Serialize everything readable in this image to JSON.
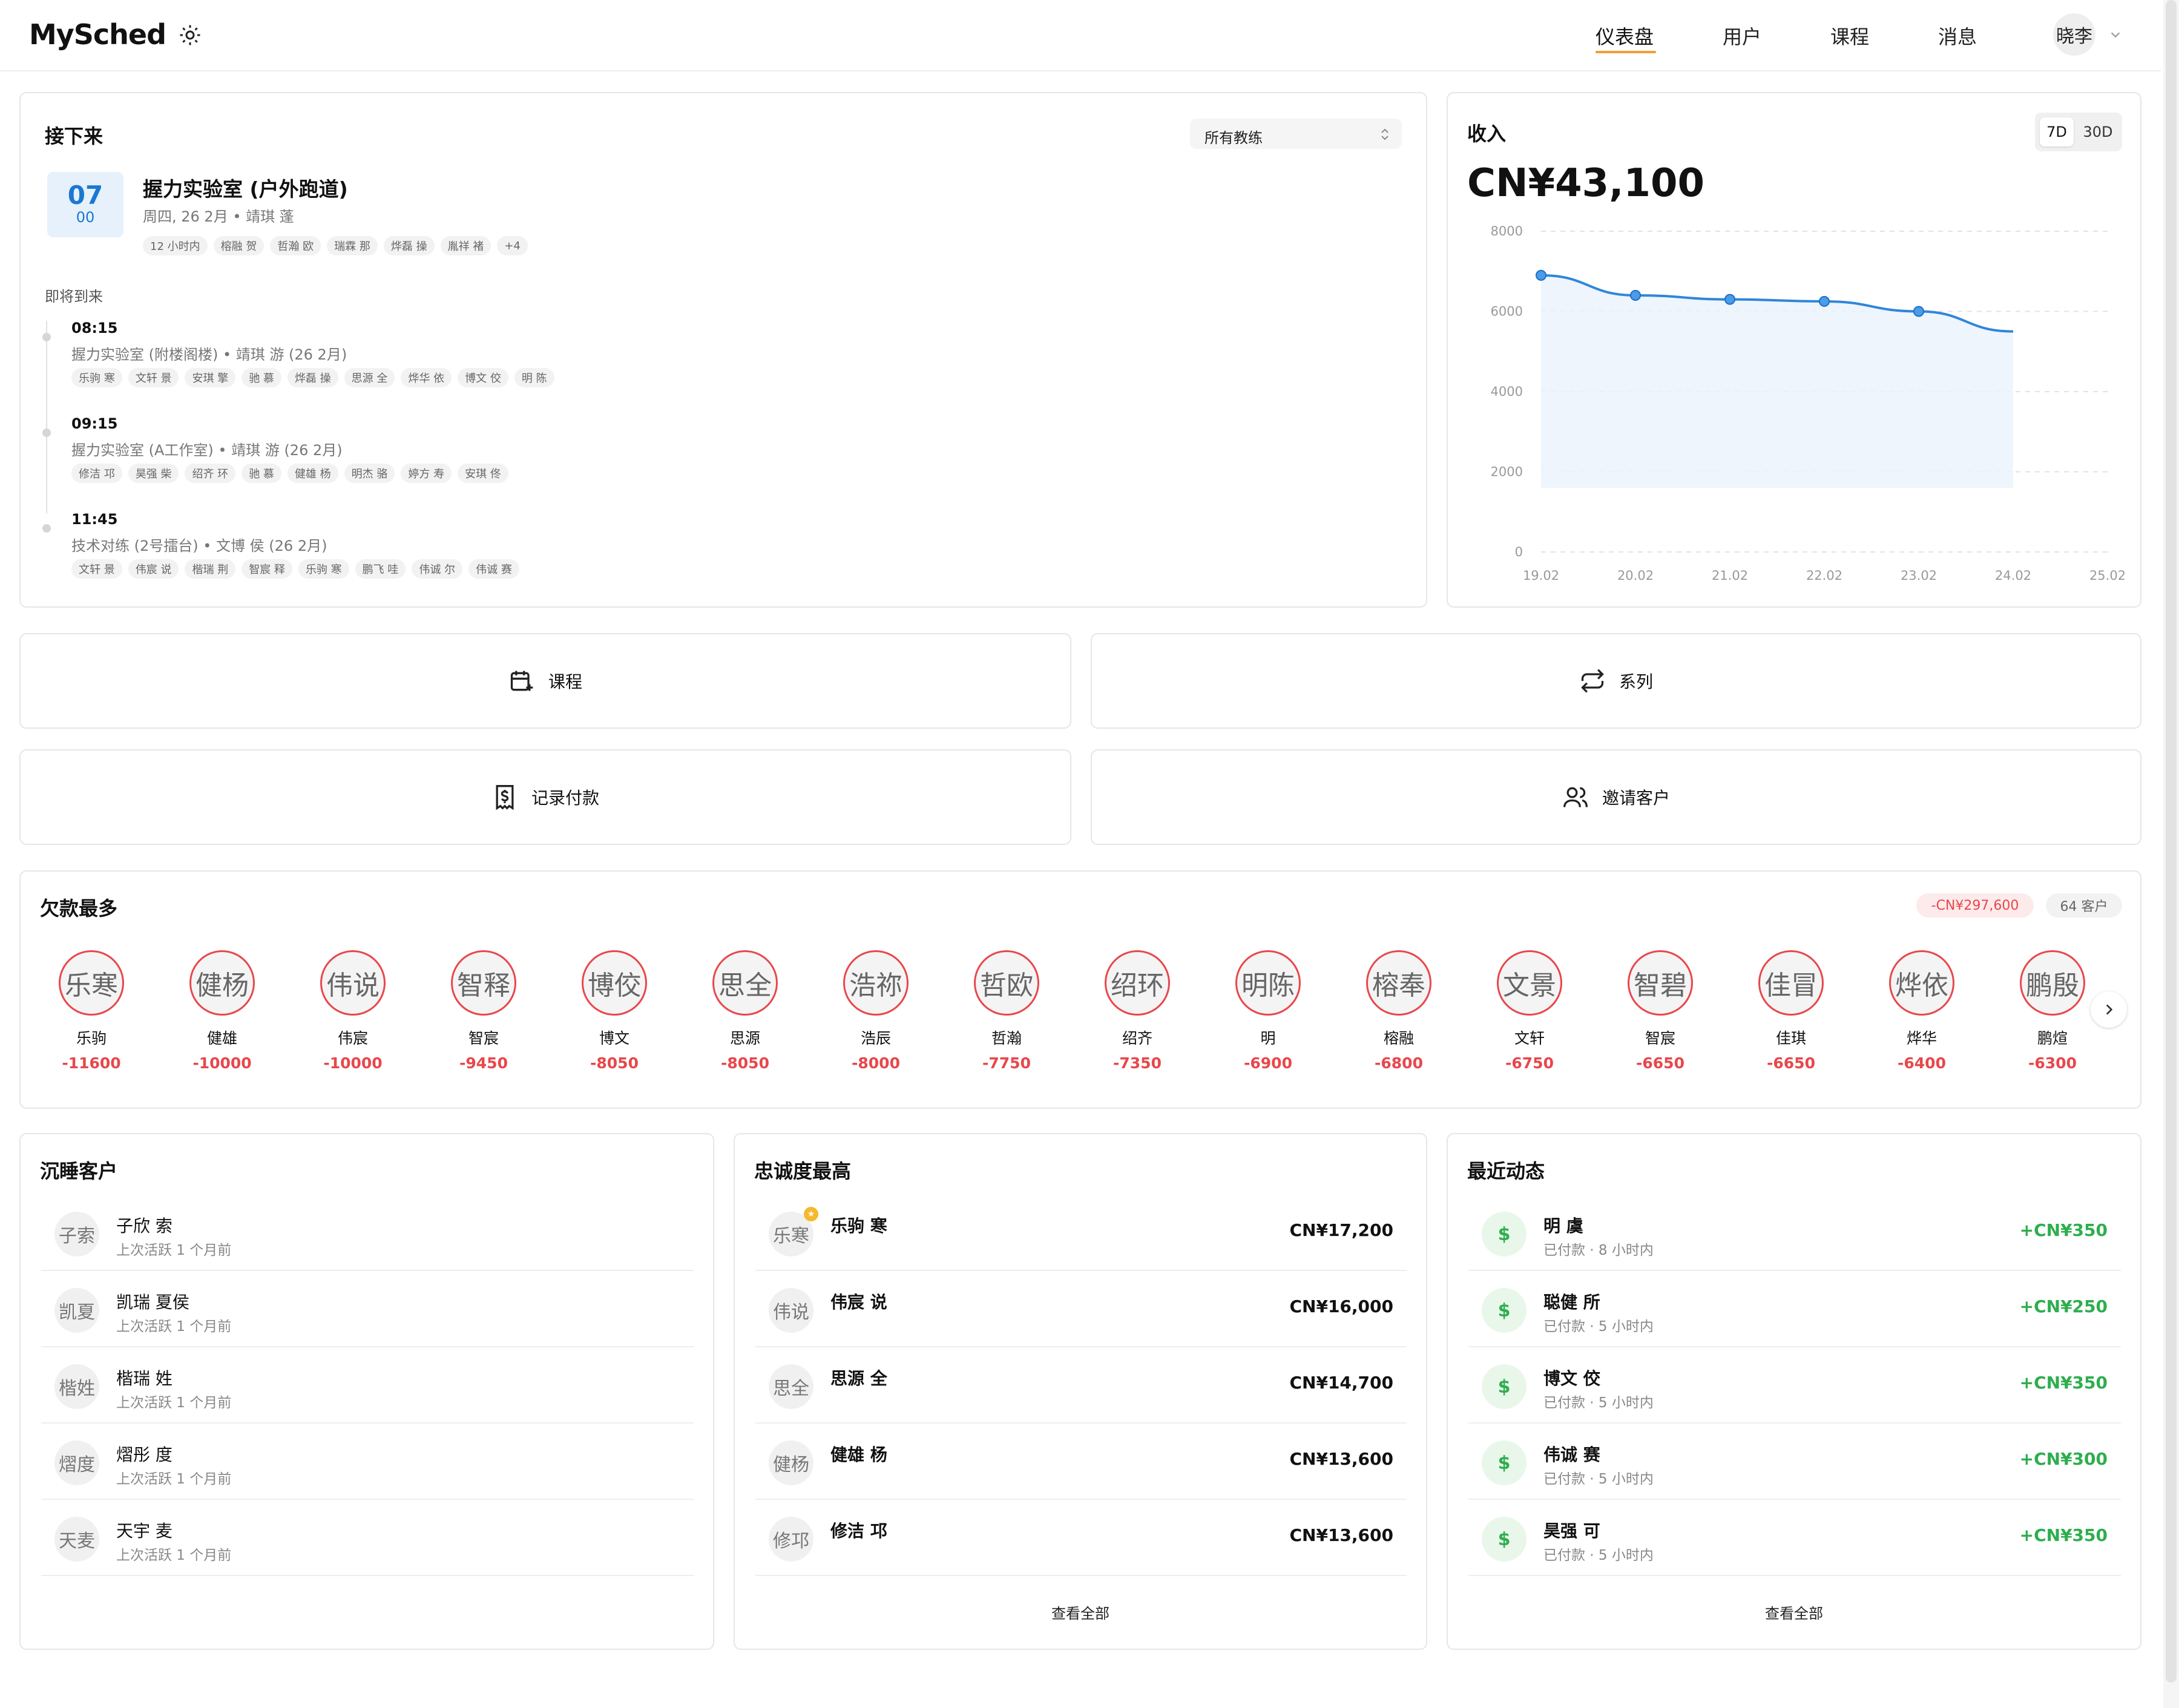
{
  "header": {
    "logo": "MySched",
    "nav": [
      {
        "label": "仪表盘"
      },
      {
        "label": "用户"
      },
      {
        "label": "课程"
      },
      {
        "label": "消息"
      }
    ],
    "user": "晓李"
  },
  "upcoming": {
    "title": "接下来",
    "filter": "所有教练",
    "next": {
      "day": "07",
      "month": "00",
      "title": "握力实验室 (户外跑道)",
      "subtitle": "周四, 26 2月 • 靖琪 蓬",
      "chips": [
        "12 小时内",
        "榕融 贺",
        "哲瀚 欧",
        "瑞霖 那",
        "烨磊 操",
        "胤祥 褚",
        "+4"
      ]
    },
    "soon_label": "即将到来",
    "items": [
      {
        "time": "08:15",
        "desc": "握力实验室 (附楼阁楼) • 靖琪 游 (26 2月)",
        "chips": [
          "乐驹 寒",
          "文轩 景",
          "安琪 擎",
          "驰 慕",
          "烨磊 操",
          "思源 全",
          "烨华 依",
          "博文 佼",
          "明 陈"
        ]
      },
      {
        "time": "09:15",
        "desc": "握力实验室 (A工作室) • 靖琪 游 (26 2月)",
        "chips": [
          "修洁 邛",
          "昊强 柴",
          "绍齐 环",
          "驰 慕",
          "健雄 杨",
          "明杰 骆",
          "婷方 寿",
          "安琪 佟"
        ]
      },
      {
        "time": "11:45",
        "desc": "技术对练 (2号擂台) • 文博 侯 (26 2月)",
        "chips": [
          "文轩 景",
          "伟宸 说",
          "楷瑞 荆",
          "智宸 释",
          "乐驹 寒",
          "鹏飞 哇",
          "伟诚 尔",
          "伟诚 赛"
        ]
      }
    ]
  },
  "revenue": {
    "title": "收入",
    "total": "CN¥43,100",
    "range_options": [
      "7D",
      "30D"
    ],
    "range_selected": "7D"
  },
  "chart_data": {
    "type": "area",
    "x": [
      "19.02",
      "20.02",
      "21.02",
      "22.02",
      "23.02",
      "24.02",
      "25.02"
    ],
    "y_ticks": [
      0,
      2000,
      4000,
      6000,
      8000
    ],
    "ylim": [
      0,
      8000
    ],
    "series": [
      {
        "values": [
          6900,
          6400,
          6300,
          6250,
          6000,
          5500,
          null
        ]
      }
    ],
    "grid": true,
    "color": "#2f86d9"
  },
  "actions": [
    {
      "label": "课程",
      "icon": "calendar-plus-icon"
    },
    {
      "label": "系列",
      "icon": "repeat-icon"
    },
    {
      "label": "记录付款",
      "icon": "receipt-icon"
    },
    {
      "label": "邀请客户",
      "icon": "users-icon"
    }
  ],
  "debts": {
    "title": "欠款最多",
    "total": "-CN¥297,600",
    "clients": "64 客户",
    "items": [
      {
        "avatar": "乐寒",
        "name": "乐驹",
        "amount": "-11600"
      },
      {
        "avatar": "健杨",
        "name": "健雄",
        "amount": "-10000"
      },
      {
        "avatar": "伟说",
        "name": "伟宸",
        "amount": "-10000"
      },
      {
        "avatar": "智释",
        "name": "智宸",
        "amount": "-9450"
      },
      {
        "avatar": "博佼",
        "name": "博文",
        "amount": "-8050"
      },
      {
        "avatar": "思全",
        "name": "思源",
        "amount": "-8050"
      },
      {
        "avatar": "浩祢",
        "name": "浩辰",
        "amount": "-8000"
      },
      {
        "avatar": "哲欧",
        "name": "哲瀚",
        "amount": "-7750"
      },
      {
        "avatar": "绍环",
        "name": "绍齐",
        "amount": "-7350"
      },
      {
        "avatar": "明陈",
        "name": "明",
        "amount": "-6900"
      },
      {
        "avatar": "榕奉",
        "name": "榕融",
        "amount": "-6800"
      },
      {
        "avatar": "文景",
        "name": "文轩",
        "amount": "-6750"
      },
      {
        "avatar": "智碧",
        "name": "智宸",
        "amount": "-6650"
      },
      {
        "avatar": "佳冒",
        "name": "佳琪",
        "amount": "-6650"
      },
      {
        "avatar": "烨依",
        "name": "烨华",
        "amount": "-6400"
      },
      {
        "avatar": "鹏殷",
        "name": "鹏煊",
        "amount": "-6300"
      }
    ]
  },
  "dormant": {
    "title": "沉睡客户",
    "items": [
      {
        "avatar": "子索",
        "name": "子欣 索",
        "sub": "上次活跃 1 个月前"
      },
      {
        "avatar": "凯夏",
        "name": "凯瑞 夏侯",
        "sub": "上次活跃 1 个月前"
      },
      {
        "avatar": "楷姓",
        "name": "楷瑞 姓",
        "sub": "上次活跃 1 个月前"
      },
      {
        "avatar": "熠度",
        "name": "熠彤 度",
        "sub": "上次活跃 1 个月前"
      },
      {
        "avatar": "天麦",
        "name": "天宇 麦",
        "sub": "上次活跃 1 个月前"
      }
    ]
  },
  "loyal": {
    "title": "忠诚度最高",
    "items": [
      {
        "avatar": "乐寒",
        "name": "乐驹 寒",
        "value": "CN¥17,200"
      },
      {
        "avatar": "伟说",
        "name": "伟宸 说",
        "value": "CN¥16,000"
      },
      {
        "avatar": "思全",
        "name": "思源 全",
        "value": "CN¥14,700"
      },
      {
        "avatar": "健杨",
        "name": "健雄 杨",
        "value": "CN¥13,600"
      },
      {
        "avatar": "修邛",
        "name": "修洁 邛",
        "value": "CN¥13,600"
      }
    ],
    "view_all": "查看全部"
  },
  "activity": {
    "title": "最近动态",
    "items": [
      {
        "name": "明 虞",
        "sub": "已付款 · 8 小时内",
        "value": "+CN¥350"
      },
      {
        "name": "聪健 所",
        "sub": "已付款 · 5 小时内",
        "value": "+CN¥250"
      },
      {
        "name": "博文 佼",
        "sub": "已付款 · 5 小时内",
        "value": "+CN¥350"
      },
      {
        "name": "伟诚 赛",
        "sub": "已付款 · 5 小时内",
        "value": "+CN¥300"
      },
      {
        "name": "昊强 可",
        "sub": "已付款 · 5 小时内",
        "value": "+CN¥350"
      }
    ],
    "view_all": "查看全部"
  }
}
